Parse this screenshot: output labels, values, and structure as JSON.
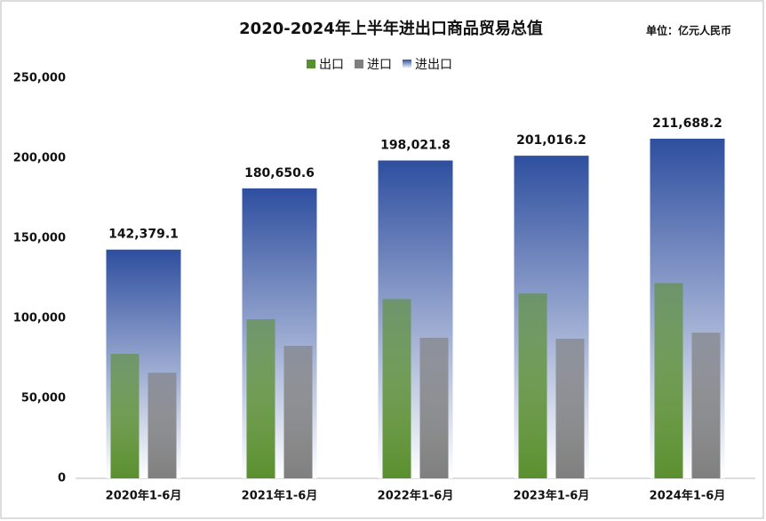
{
  "chart_data": {
    "type": "bar",
    "title": "2020-2024年上半年进出口商品贸易总值",
    "subtitle": "单位：亿元人民币",
    "categories": [
      "2020年1-6月",
      "2021年1-6月",
      "2022年1-6月",
      "2023年1-6月",
      "2024年1-6月"
    ],
    "series": [
      {
        "name": "出口",
        "color": "#5a8f2f",
        "values": [
          77800,
          99400,
          112000,
          115500,
          122000
        ]
      },
      {
        "name": "进口",
        "color": "#7f7f7f",
        "values": [
          66000,
          82800,
          87800,
          87200,
          91000
        ]
      },
      {
        "name": "进出口",
        "color": "#2f4f9f",
        "values": [
          142379.1,
          180650.6,
          198021.8,
          201016.2,
          211688.2
        ],
        "value_labels": [
          "142,379.1",
          "180,650.6",
          "198,021.8",
          "201,016.2",
          "211,688.2"
        ]
      }
    ],
    "ylim": [
      0,
      250000
    ],
    "yticks": [
      0,
      {
        "value": 50000,
        "label": "50,000"
      },
      {
        "value": 100000,
        "label": "100,000"
      },
      {
        "value": 150000,
        "label": "150,000"
      },
      {
        "value": 200000,
        "label": "200,000"
      },
      {
        "value": 250000,
        "label": "250,000"
      }
    ],
    "grid": false
  }
}
